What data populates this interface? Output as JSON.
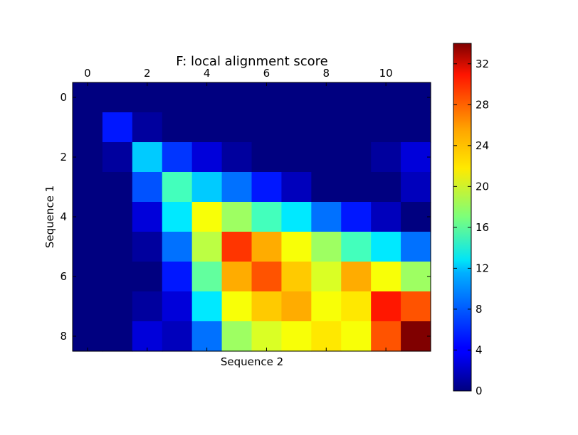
{
  "chart_data": {
    "type": "heatmap",
    "title": "F: local alignment score",
    "xlabel": "Sequence 2",
    "ylabel": "Sequence 1",
    "x_ticks": [
      "0",
      "2",
      "4",
      "6",
      "8",
      "10"
    ],
    "y_ticks": [
      "0",
      "2",
      "4",
      "6",
      "8"
    ],
    "colormap": "jet",
    "colorbar": {
      "min": 0,
      "max": 34,
      "ticks": [
        "0",
        "4",
        "8",
        "12",
        "16",
        "20",
        "24",
        "28",
        "32"
      ]
    },
    "matrix": [
      [
        0,
        0,
        0,
        0,
        0,
        0,
        0,
        0,
        0,
        0,
        0,
        0
      ],
      [
        0,
        5,
        1,
        0,
        0,
        0,
        0,
        0,
        0,
        0,
        0,
        0
      ],
      [
        0,
        1,
        11,
        6,
        3,
        1,
        0,
        0,
        0,
        0,
        1,
        3
      ],
      [
        0,
        0,
        7,
        15,
        11,
        8,
        5,
        2,
        0,
        0,
        0,
        2
      ],
      [
        0,
        0,
        3,
        12,
        21,
        18,
        15,
        12,
        8,
        5,
        2,
        0
      ],
      [
        0,
        0,
        1,
        8,
        19,
        28,
        24,
        21,
        18,
        15,
        12,
        8
      ],
      [
        0,
        0,
        0,
        5,
        16,
        24,
        27,
        23,
        20,
        24,
        21,
        18
      ],
      [
        0,
        0,
        1,
        3,
        12,
        21,
        23,
        24,
        21,
        22,
        29,
        27
      ],
      [
        0,
        0,
        3,
        2,
        8,
        18,
        20,
        21,
        22,
        21,
        27,
        34
      ]
    ]
  }
}
